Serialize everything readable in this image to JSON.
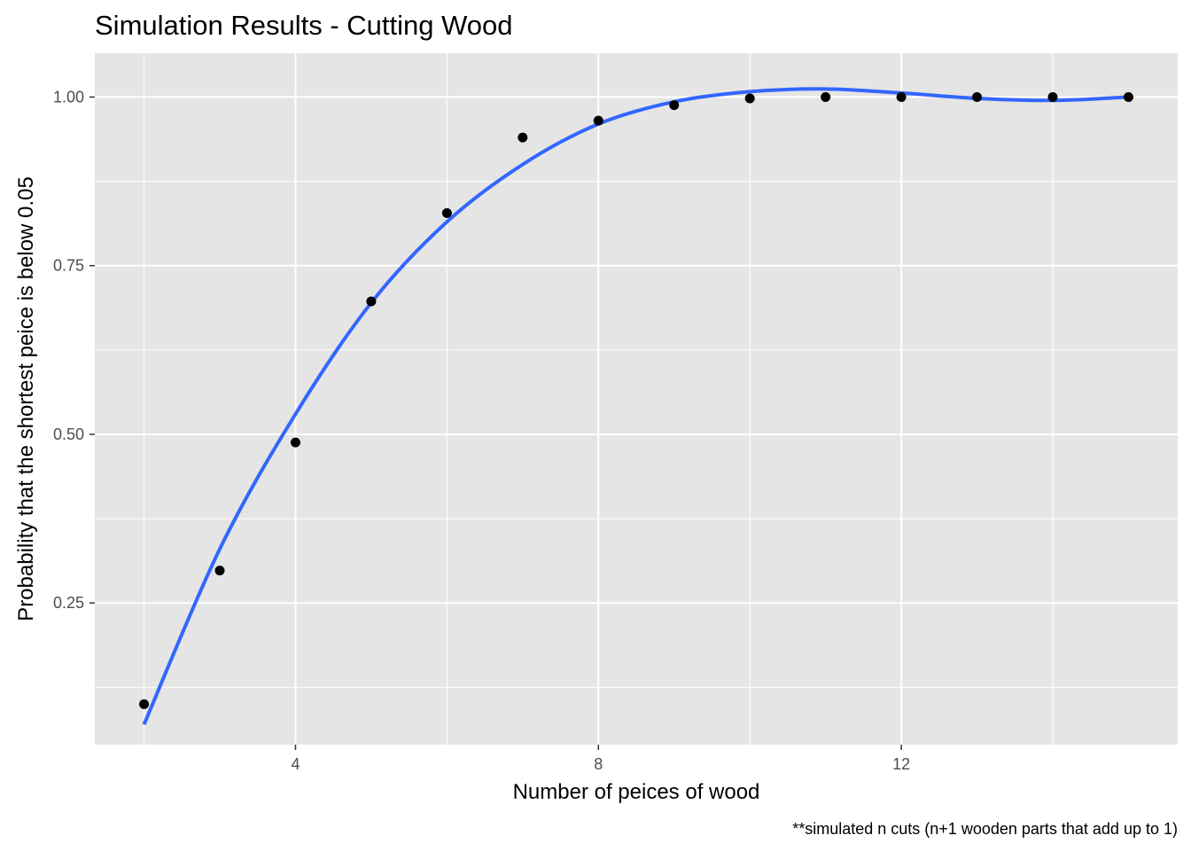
{
  "chart_data": {
    "type": "scatter",
    "title": "Simulation Results - Cutting Wood",
    "xlabel": "Number of peices of wood",
    "ylabel": "Probability that the shortest peice is below 0.05",
    "caption": "**simulated n cuts (n+1 wooden parts that add up to 1)",
    "x_ticks": [
      4,
      8,
      12
    ],
    "y_ticks": [
      0.25,
      0.5,
      0.75,
      1.0
    ],
    "y_tick_labels": [
      "0.25",
      "0.50",
      "0.75",
      "1.00"
    ],
    "xlim": [
      1.35,
      15.65
    ],
    "ylim": [
      0.04,
      1.065
    ],
    "grid": true,
    "series": [
      {
        "type": "scatter",
        "color": "#000000",
        "x": [
          2,
          3,
          4,
          5,
          6,
          7,
          8,
          9,
          10,
          11,
          12,
          13,
          14,
          15
        ],
        "y": [
          0.1,
          0.298,
          0.488,
          0.697,
          0.828,
          0.94,
          0.965,
          0.988,
          0.998,
          1.0,
          1.0,
          1.0,
          1.0,
          1.0
        ]
      },
      {
        "type": "line",
        "color": "#3366ff",
        "x": [
          2,
          3,
          4,
          5,
          6,
          7,
          8,
          9,
          10,
          11,
          12,
          13,
          14,
          15
        ],
        "y": [
          0.07,
          0.33,
          0.53,
          0.695,
          0.815,
          0.9,
          0.96,
          0.993,
          1.008,
          1.012,
          1.006,
          0.998,
          0.995,
          1.0
        ]
      }
    ]
  }
}
